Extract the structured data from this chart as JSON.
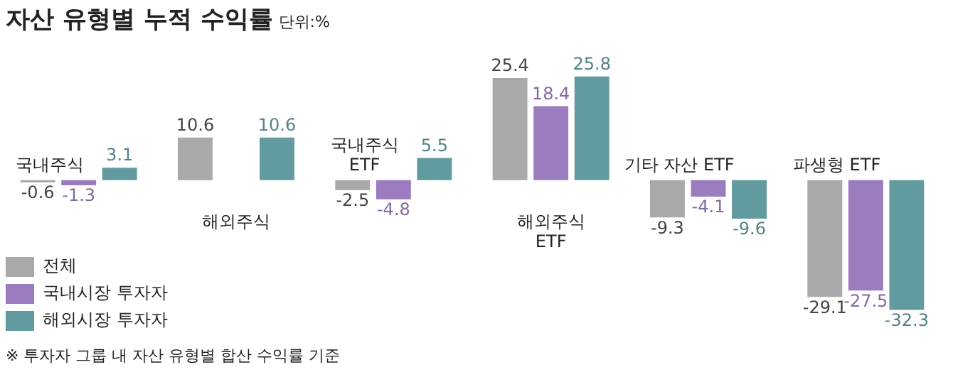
{
  "chart_data": {
    "type": "bar",
    "title": "자산 유형별 누적 수익률",
    "subtitle": "단위:%",
    "categories": [
      "국내주식",
      "해외주식",
      "국내주식 ETF",
      "해외주식 ETF",
      "기타 자산 ETF",
      "파생형 ETF"
    ],
    "series": [
      {
        "name": "전체",
        "color": "#a9a9ab",
        "values": [
          -0.6,
          10.6,
          -2.5,
          25.4,
          -9.3,
          -29.1
        ]
      },
      {
        "name": "국내시장 투자자",
        "color": "#9b7cbf",
        "values": [
          -1.3,
          null,
          -4.8,
          18.4,
          -4.1,
          -27.5
        ]
      },
      {
        "name": "해외시장 투자자",
        "color": "#619a9f",
        "values": [
          3.1,
          10.6,
          5.5,
          25.8,
          -9.6,
          -32.3
        ]
      }
    ],
    "data_labels": true,
    "legend": "bottom left",
    "annotations": [
      "※ 투자자 그룹 내 자산 유형별 합산 수익률 기준"
    ]
  }
}
